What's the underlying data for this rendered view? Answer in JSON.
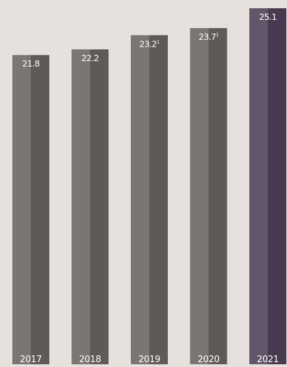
{
  "chart_data": {
    "type": "bar",
    "title": "",
    "xlabel": "",
    "ylabel": "",
    "categories": [
      "2017",
      "2018",
      "2019",
      "2020",
      "2021"
    ],
    "values": [
      21.8,
      22.2,
      23.2,
      23.7,
      25.1
    ],
    "value_labels": [
      "21.8",
      "22.2",
      "23.2",
      "23.7",
      "25.1"
    ],
    "footnote_marks": [
      "",
      "",
      "1",
      "1",
      ""
    ],
    "highlight_index": 4,
    "ylim": [
      0,
      25.1
    ],
    "grid": false,
    "colors": {
      "background": "#e6e1dd",
      "bar_light": "#7a7672",
      "bar_dark": "#5f5a58",
      "highlight_light": "#64566a",
      "highlight_dark": "#4a3a51",
      "label_text": "#ffffff"
    }
  }
}
